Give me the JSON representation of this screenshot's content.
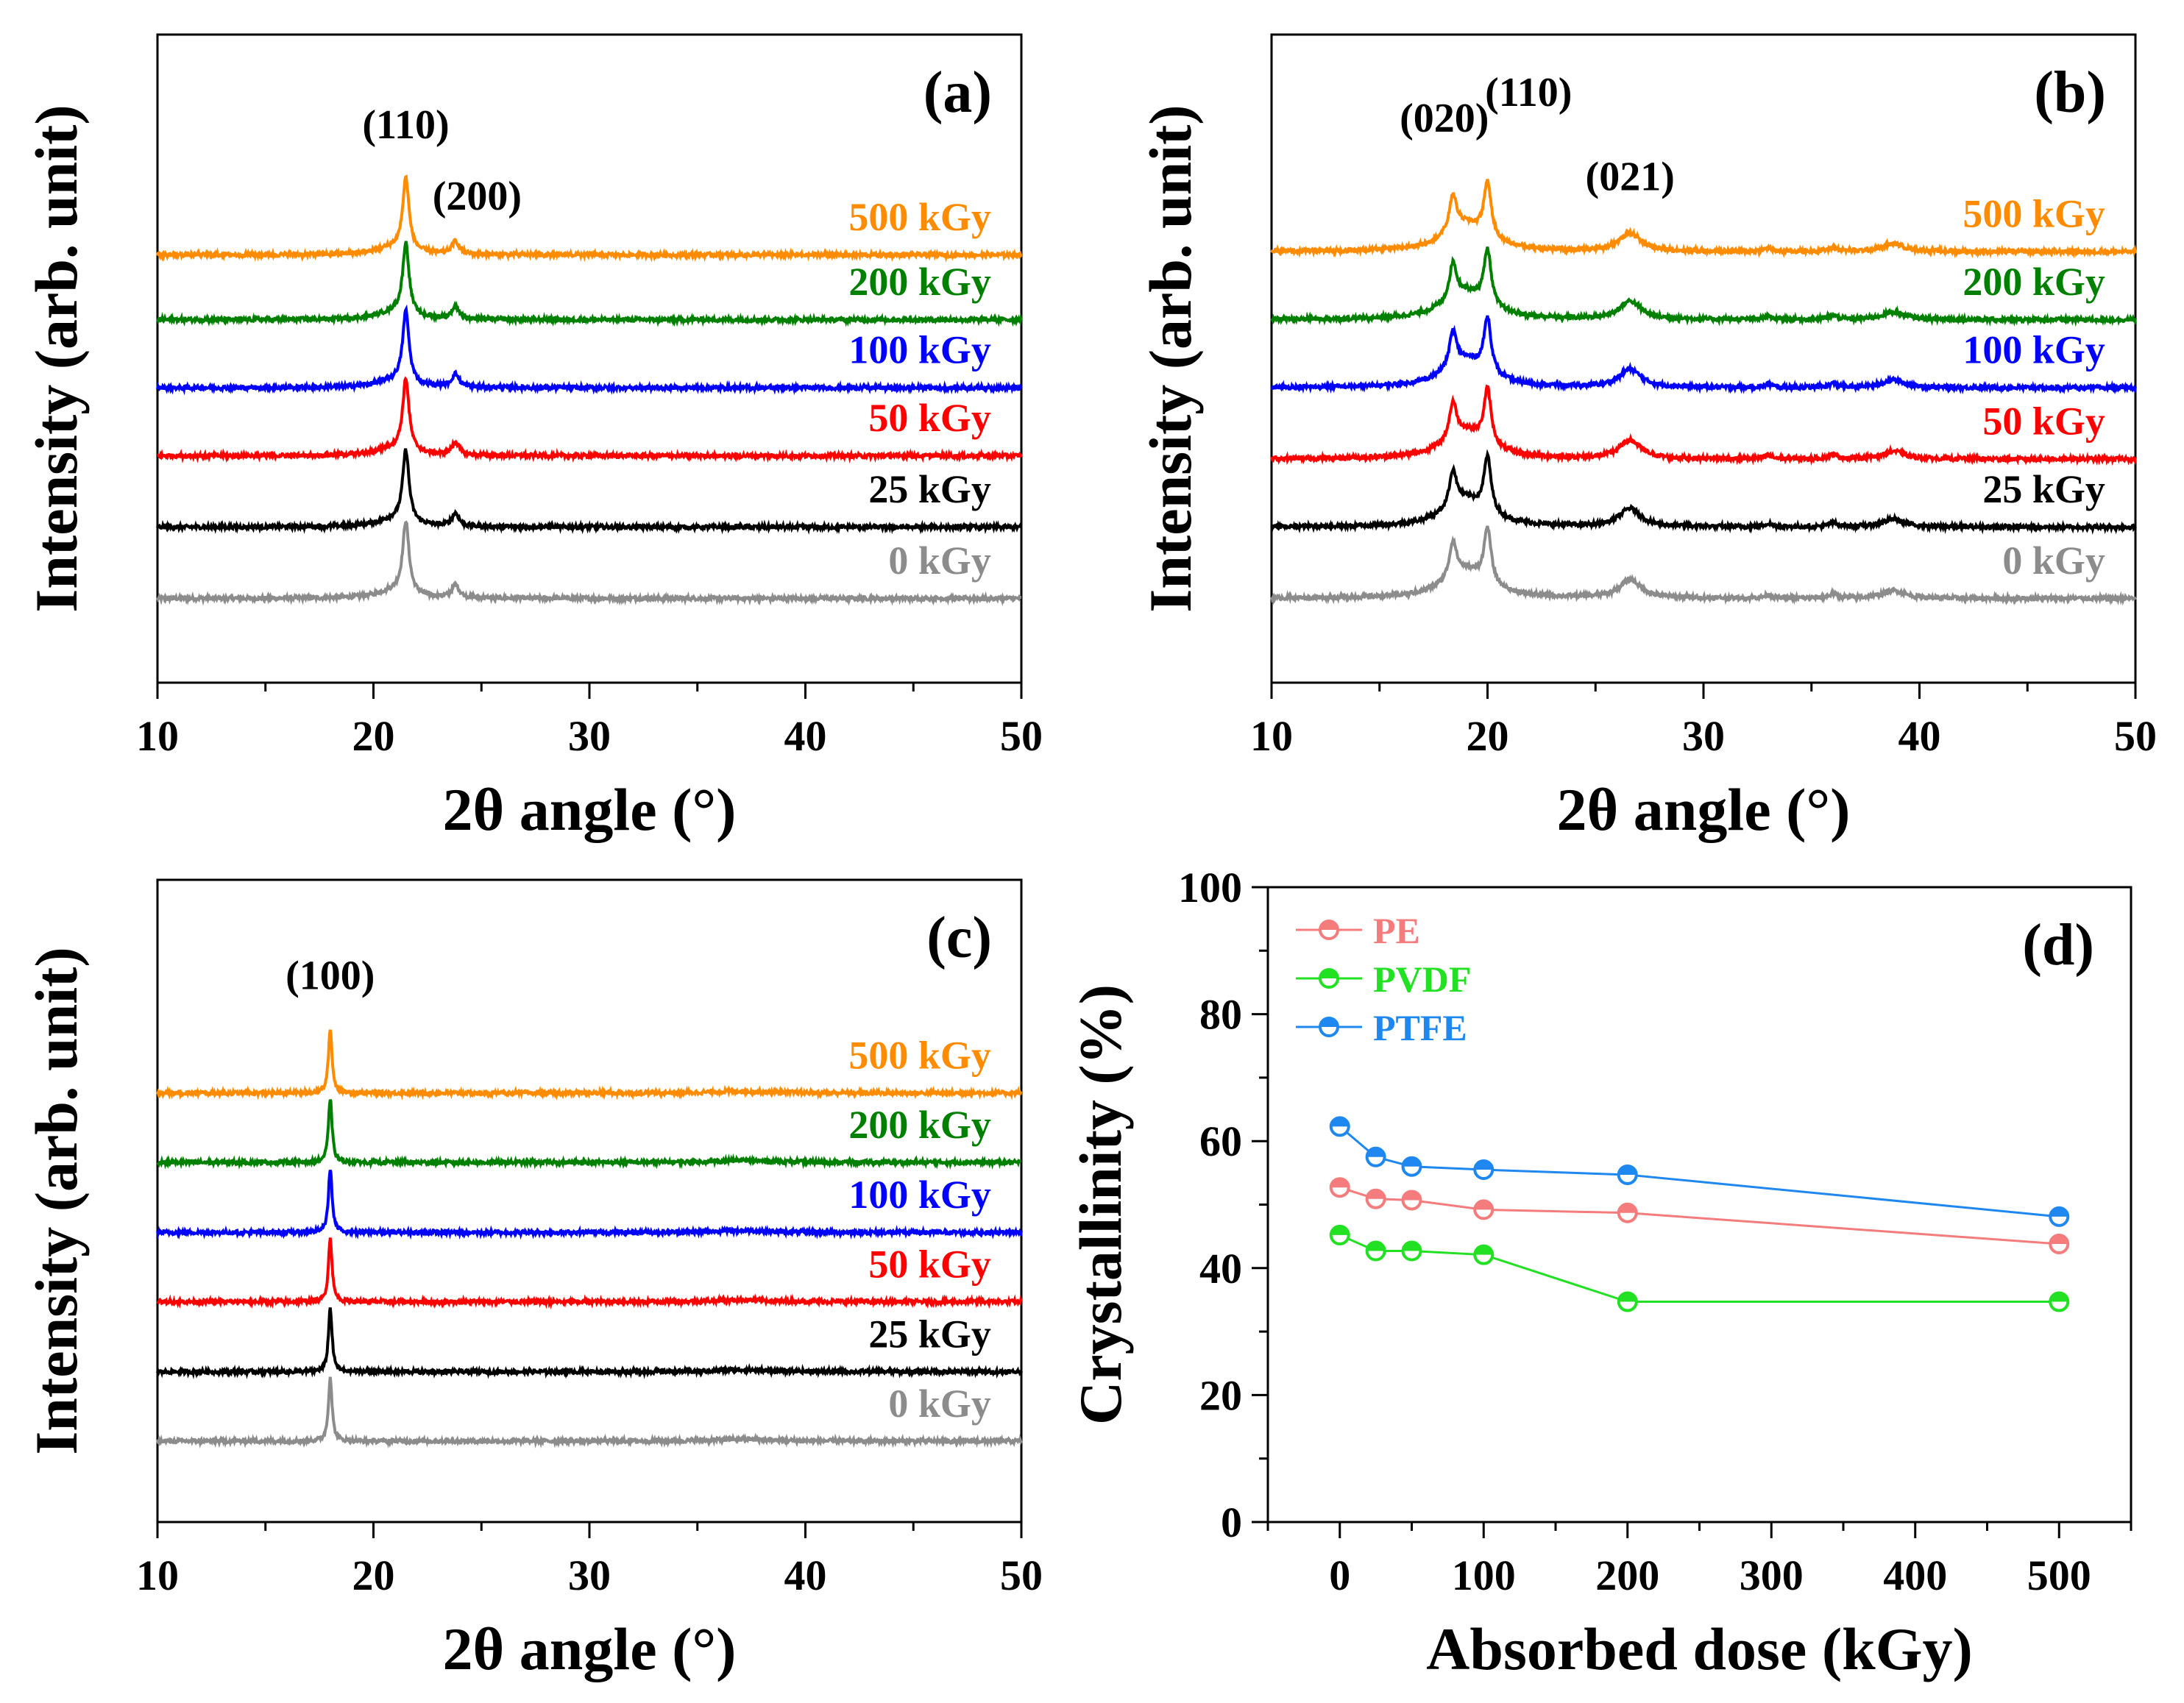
{
  "chart_data": [
    {
      "panel": "(a)",
      "type": "line",
      "xlabel": "2θ angle (°)",
      "ylabel": "Intensity (arb. unit)",
      "xlim": [
        10,
        50
      ],
      "xticks": [
        10,
        20,
        30,
        40,
        50
      ],
      "ylim": [
        0,
        10
      ],
      "y_tick_labels": false,
      "annotations": [
        {
          "text": "(110)",
          "x": 21.5,
          "y": 8.4
        },
        {
          "text": "(200)",
          "x": 24.8,
          "y": 7.3
        }
      ],
      "peaks": [
        {
          "center": 21.5,
          "height": 1.1,
          "width": 0.35
        },
        {
          "center": 23.8,
          "height": 0.2,
          "width": 0.4
        },
        {
          "center": 21.0,
          "height": 0.12,
          "width": 2.0
        }
      ],
      "series": [
        {
          "name": "0 kGy",
          "color": "#8c8c8c",
          "offset": 1.3
        },
        {
          "name": "25 kGy",
          "color": "#000000",
          "offset": 2.4
        },
        {
          "name": "50 kGy",
          "color": "#ff0000",
          "offset": 3.5
        },
        {
          "name": "100 kGy",
          "color": "#0000ff",
          "offset": 4.55
        },
        {
          "name": "200 kGy",
          "color": "#008000",
          "offset": 5.6
        },
        {
          "name": "500 kGy",
          "color": "#ff8c00",
          "offset": 6.6
        }
      ]
    },
    {
      "panel": "(b)",
      "type": "line",
      "xlabel": "2θ angle (°)",
      "ylabel": "Intensity (arb. unit)",
      "xlim": [
        10,
        50
      ],
      "xticks": [
        10,
        20,
        30,
        40,
        50
      ],
      "ylim": [
        0,
        10
      ],
      "y_tick_labels": false,
      "annotations": [
        {
          "text": "(020)",
          "x": 18.0,
          "y": 8.5
        },
        {
          "text": "(110)",
          "x": 21.9,
          "y": 8.9
        },
        {
          "text": "(021)",
          "x": 26.6,
          "y": 7.6
        }
      ],
      "peaks": [
        {
          "center": 18.4,
          "height": 0.55,
          "width": 0.4
        },
        {
          "center": 20.0,
          "height": 0.85,
          "width": 0.4
        },
        {
          "center": 19.0,
          "height": 0.42,
          "width": 2.4
        },
        {
          "center": 26.6,
          "height": 0.28,
          "width": 1.2
        },
        {
          "center": 33.0,
          "height": 0.05,
          "width": 0.4
        },
        {
          "center": 36.0,
          "height": 0.06,
          "width": 0.5
        },
        {
          "center": 38.8,
          "height": 0.12,
          "width": 1.2
        }
      ],
      "series": [
        {
          "name": "0 kGy",
          "color": "#8c8c8c",
          "offset": 1.3
        },
        {
          "name": "25 kGy",
          "color": "#000000",
          "offset": 2.4
        },
        {
          "name": "50 kGy",
          "color": "#ff0000",
          "offset": 3.45
        },
        {
          "name": "100 kGy",
          "color": "#0000ff",
          "offset": 4.55
        },
        {
          "name": "200 kGy",
          "color": "#008000",
          "offset": 5.6
        },
        {
          "name": "500 kGy",
          "color": "#ff8c00",
          "offset": 6.65
        }
      ]
    },
    {
      "panel": "(c)",
      "type": "line",
      "xlabel": "2θ angle (°)",
      "ylabel": "Intensity (arb. unit)",
      "xlim": [
        10,
        50
      ],
      "xticks": [
        10,
        20,
        30,
        40,
        50
      ],
      "ylim": [
        0,
        10
      ],
      "y_tick_labels": false,
      "annotations": [
        {
          "text": "(100)",
          "x": 18.0,
          "y": 8.3
        }
      ],
      "peaks": [
        {
          "center": 18.0,
          "height": 1.0,
          "width": 0.2
        },
        {
          "center": 37.0,
          "height": 0.03,
          "width": 3.0
        }
      ],
      "series": [
        {
          "name": "0 kGy",
          "color": "#8c8c8c",
          "offset": 1.26
        },
        {
          "name": "25 kGy",
          "color": "#000000",
          "offset": 2.34
        },
        {
          "name": "50 kGy",
          "color": "#ff0000",
          "offset": 3.43
        },
        {
          "name": "100 kGy",
          "color": "#0000ff",
          "offset": 4.51
        },
        {
          "name": "200 kGy",
          "color": "#008000",
          "offset": 5.6
        },
        {
          "name": "500 kGy",
          "color": "#ff8c00",
          "offset": 6.68
        }
      ]
    },
    {
      "panel": "(d)",
      "type": "line",
      "xlabel": "Absorbed dose (kGy)",
      "ylabel": "Crystallinity (%)",
      "xlim": [
        -50,
        550
      ],
      "xticks": [
        0,
        100,
        200,
        300,
        400,
        500
      ],
      "ylim": [
        0,
        100
      ],
      "yticks": [
        0,
        20,
        40,
        60,
        80,
        100
      ],
      "legend": "top-left",
      "x": [
        0,
        25,
        50,
        100,
        200,
        500
      ],
      "series": [
        {
          "name": "PE",
          "color": "#f47c7c",
          "values": [
            52.7,
            50.9,
            50.7,
            49.2,
            48.7,
            43.8
          ]
        },
        {
          "name": "PVDF",
          "color": "#22e022",
          "values": [
            45.2,
            42.7,
            42.7,
            42.1,
            34.7,
            34.7
          ]
        },
        {
          "name": "PTFE",
          "color": "#1e88f0",
          "values": [
            62.3,
            57.5,
            56.0,
            55.5,
            54.7,
            48.1
          ]
        }
      ]
    }
  ]
}
